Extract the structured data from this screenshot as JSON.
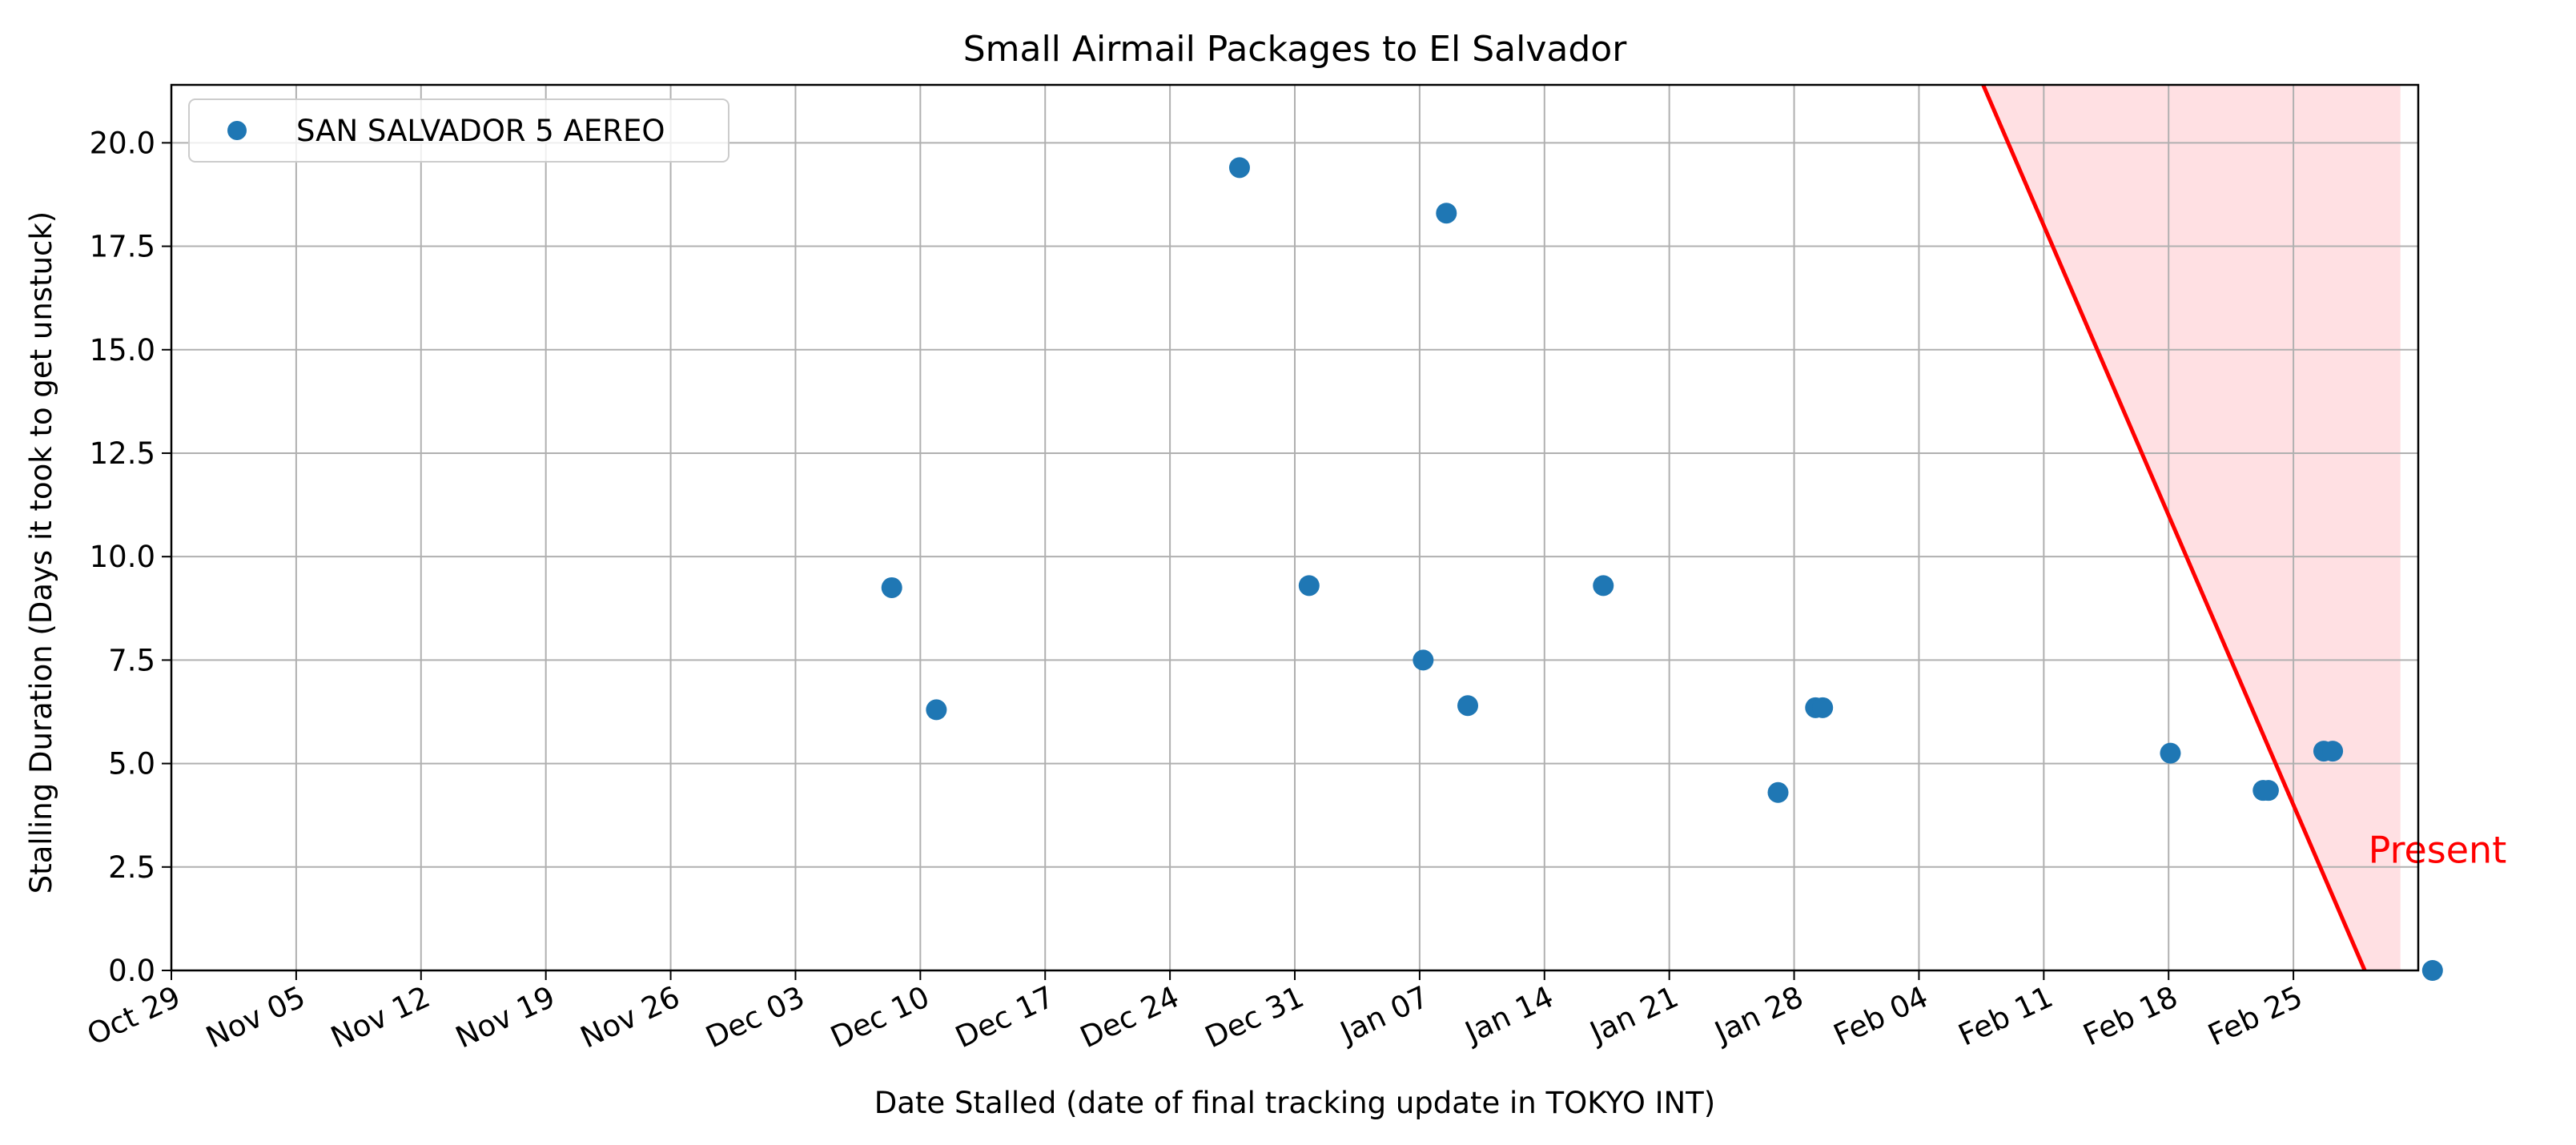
{
  "chart_data": {
    "type": "scatter",
    "title": "Small Airmail Packages to El Salvador",
    "xlabel": "Date Stalled (date of final tracking update in TOKYO INT)",
    "ylabel": "Stalling Duration (Days it took to get unstuck)",
    "x_ticks": [
      "Oct 29",
      "Nov 05",
      "Nov 12",
      "Nov 19",
      "Nov 26",
      "Dec 03",
      "Dec 10",
      "Dec 17",
      "Dec 24",
      "Dec 31",
      "Jan 07",
      "Jan 14",
      "Jan 21",
      "Jan 28",
      "Feb 04",
      "Feb 11",
      "Feb 18",
      "Feb 25"
    ],
    "y_ticks": [
      "0.0",
      "2.5",
      "5.0",
      "7.5",
      "10.0",
      "12.5",
      "15.0",
      "17.5",
      "20.0"
    ],
    "xlim": [
      0,
      126
    ],
    "ylim": [
      0,
      21.4
    ],
    "grid": true,
    "legend": {
      "placement": "top-left",
      "entries": [
        "SAN SALVADOR 5 AEREO"
      ]
    },
    "series": [
      {
        "name": "SAN SALVADOR 5 AEREO",
        "color": "#1f77b4",
        "marker": "circle",
        "x_days_since_oct29": [
          40.4,
          42.9,
          59.9,
          63.8,
          70.2,
          71.5,
          72.7,
          80.3,
          90.1,
          92.2,
          92.6,
          126.8,
          112.1,
          117.3,
          117.6,
          120.7,
          121.2
        ],
        "y": [
          9.25,
          6.3,
          19.4,
          9.3,
          7.5,
          18.3,
          6.4,
          9.3,
          4.3,
          6.35,
          6.35,
          0.0,
          5.25,
          4.35,
          4.35,
          5.3,
          5.3
        ]
      }
    ],
    "overlay": {
      "line_color": "#ff0000",
      "fill_color": "#ffe0e3",
      "line_top": {
        "x": 101.6,
        "y": 21.4
      },
      "line_bottom": {
        "x": 123.0,
        "y": 0.0
      },
      "fill_right_x": 125.0,
      "label": {
        "text": "Present",
        "x": 123.2,
        "y": 2.6
      }
    }
  }
}
